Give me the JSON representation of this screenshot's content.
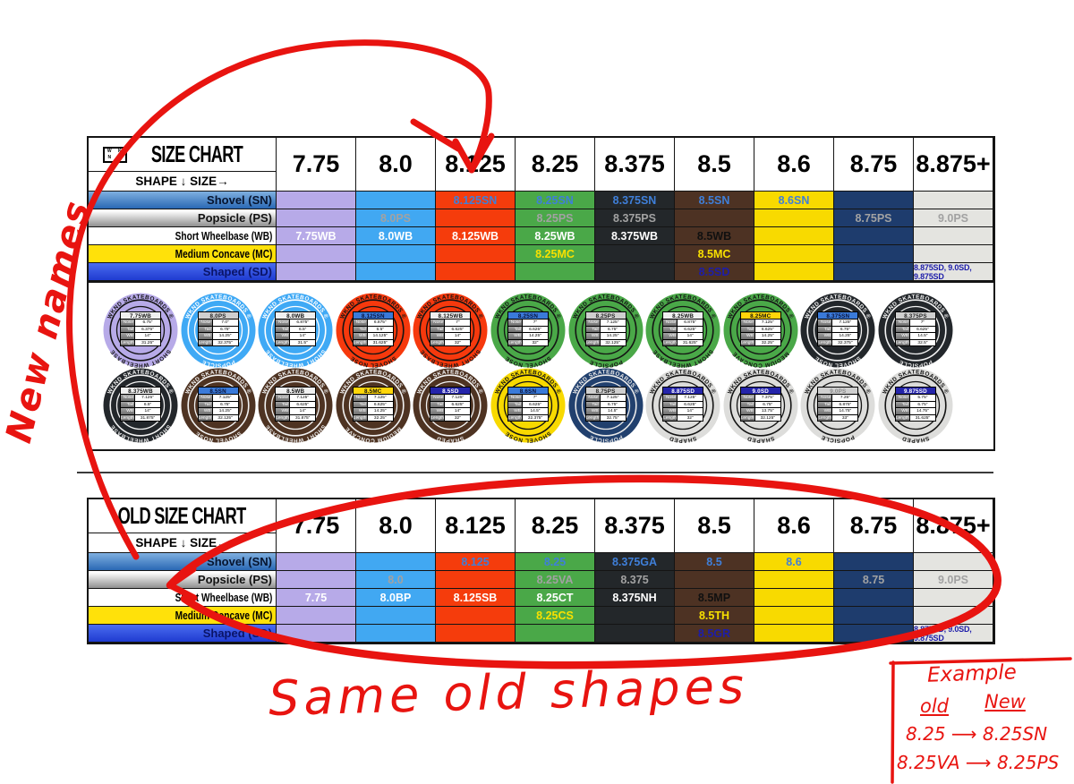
{
  "shared": {
    "subtitle": "SHAPE ↓ SIZE→",
    "logo_letters": [
      "W",
      "K",
      "N",
      "D"
    ],
    "sizes": [
      "7.75",
      "8.0",
      "8.125",
      "8.25",
      "8.375",
      "8.5",
      "8.6",
      "8.75",
      "8.875+"
    ],
    "column_colors": [
      "#b7aae8",
      "#41a8f2",
      "#f53c0c",
      "#4aa848",
      "#23272a",
      "#4d3223",
      "#f8da00",
      "#1e3c6d",
      "#e4e4e0"
    ],
    "column_x_style": [
      "dark",
      "dark",
      "dark",
      "dark",
      "light",
      "light",
      "dark",
      "light",
      "dark"
    ],
    "value_colors": {
      "SN": "#3f7fd9",
      "PS": "#a2a2a2",
      "WB": "#ffffff",
      "MC": "#f8e000",
      "SD": "#1d1daa"
    }
  },
  "new_chart": {
    "key": "new",
    "title": "SIZE CHART",
    "has_logo": true,
    "rows": [
      {
        "label": "Shovel (SN)",
        "code": "SN",
        "cells": [
          "",
          "",
          "8.125SN",
          "8.25SN",
          "8.375SN",
          "8.5SN",
          "8.6SN",
          "",
          ""
        ]
      },
      {
        "label": "Popsicle (PS)",
        "code": "PS",
        "cells": [
          "",
          "8.0PS",
          "",
          "8.25PS",
          "8.375PS",
          "",
          "",
          "8.75PS",
          "9.0PS"
        ]
      },
      {
        "label": "Short Wheelbase (WB)",
        "code": "WB",
        "cells": [
          "7.75WB",
          "8.0WB",
          "8.125WB",
          "8.25WB",
          "8.375WB",
          "8.5WB",
          "",
          "",
          ""
        ]
      },
      {
        "label": "Medium Concave (MC)",
        "code": "MC",
        "cells": [
          "",
          "",
          "",
          "8.25MC",
          "",
          "8.5MC",
          "",
          "",
          ""
        ]
      },
      {
        "label": "Shaped (SD)",
        "code": "SD",
        "cells": [
          "",
          "",
          "",
          "",
          "",
          "8.5SD",
          "",
          "",
          "8.875SD, 9.0SD, 9.875SD"
        ]
      }
    ]
  },
  "old_chart": {
    "key": "old",
    "title": "OLD SIZE CHART",
    "has_logo": false,
    "rows": [
      {
        "label": "Shovel (SN)",
        "code": "SN",
        "cells": [
          "",
          "",
          "8.125",
          "8.25",
          "8.375GA",
          "8.5",
          "8.6",
          "",
          ""
        ]
      },
      {
        "label": "Popsicle (PS)",
        "code": "PS",
        "cells": [
          "",
          "8.0",
          "",
          "8.25VA",
          "8.375",
          "",
          "",
          "8.75",
          "9.0PS"
        ]
      },
      {
        "label": "Short Wheelbase (WB)",
        "code": "WB",
        "cells": [
          "7.75",
          "8.0BP",
          "8.125SB",
          "8.25CT",
          "8.375NH",
          "8.5MP",
          "",
          "",
          ""
        ]
      },
      {
        "label": "Medium Concave (MC)",
        "code": "MC",
        "cells": [
          "",
          "",
          "",
          "8.25CS",
          "",
          "8.5TH",
          "",
          "",
          ""
        ]
      },
      {
        "label": "Shaped (SD)",
        "code": "SD",
        "cells": [
          "",
          "",
          "",
          "",
          "",
          "8.5GR",
          "",
          "",
          "8.875SD, 9.0SD, 9.875SD"
        ]
      }
    ]
  },
  "badges": {
    "brand_arc": "WKND SKATEBOARDS ®",
    "shape_names": {
      "WB": "SHORT WHEELBASE",
      "PS": "POPSICLE",
      "SN": "SHOVEL NOSE",
      "MC": "MEDIUM CONCAVE",
      "SD": "SHAPED"
    },
    "measure_labels": [
      "Nose",
      "Tail",
      "WB",
      "Length"
    ],
    "measure_keys": [
      "nose",
      "tail",
      "wb",
      "length"
    ],
    "row1": [
      {
        "id": "7.75WB",
        "shape": "WB",
        "bg": "#b7aae8",
        "fg": "#141414",
        "title_bg": "#f0f0f0",
        "title_fg": "#111111",
        "nose": "6.75\"",
        "tail": "6.375\"",
        "wb": "14\"",
        "length": "31.25\""
      },
      {
        "id": "8.0PS",
        "shape": "PS",
        "bg": "#3fa9f5",
        "fg": "#ffffff",
        "title_bg": "#cfcfcf",
        "title_fg": "#222222",
        "nose": "7.0\"",
        "tail": "6.75\"",
        "wb": "14.25\"",
        "length": "32.375\""
      },
      {
        "id": "8.0WB",
        "shape": "WB",
        "bg": "#3fa9f5",
        "fg": "#ffffff",
        "title_bg": "#f0f0f0",
        "title_fg": "#111111",
        "nose": "6.875\"",
        "tail": "6.5\"",
        "wb": "14\"",
        "length": "31.5\""
      },
      {
        "id": "8.125SN",
        "shape": "SN",
        "bg": "#f6390d",
        "fg": "#141414",
        "title_bg": "#3a7ad9",
        "title_fg": "#0a1238",
        "nose": "6.875\"",
        "tail": "6.5\"",
        "wb": "14.125\"",
        "length": "31.625\""
      },
      {
        "id": "8.125WB",
        "shape": "WB",
        "bg": "#f6390d",
        "fg": "#141414",
        "title_bg": "#f0f0f0",
        "title_fg": "#111111",
        "nose": "7\"",
        "tail": "6.625\"",
        "wb": "14\"",
        "length": "32\""
      },
      {
        "id": "8.25SN",
        "shape": "SN",
        "bg": "#4aa848",
        "fg": "#141414",
        "title_bg": "#3a7ad9",
        "title_fg": "#0a1238",
        "nose": "7\"",
        "tail": "6.625\"",
        "wb": "14.25\"",
        "length": "32\""
      },
      {
        "id": "8.25PS",
        "shape": "PS",
        "bg": "#4aa848",
        "fg": "#141414",
        "title_bg": "#cfcfcf",
        "title_fg": "#222222",
        "nose": "7.125\"",
        "tail": "6.75\"",
        "wb": "14.25\"",
        "length": "32.125\""
      },
      {
        "id": "8.25WB",
        "shape": "WB",
        "bg": "#4aa848",
        "fg": "#141414",
        "title_bg": "#f0f0f0",
        "title_fg": "#111111",
        "nose": "6.875\"",
        "tail": "6.625\"",
        "wb": "14\"",
        "length": "31.625\""
      },
      {
        "id": "8.25MC",
        "shape": "MC",
        "bg": "#4aa848",
        "fg": "#141414",
        "title_bg": "#ffd60a",
        "title_fg": "#111111",
        "nose": "7.125\"",
        "tail": "6.625\"",
        "wb": "14.25\"",
        "length": "32.25\""
      },
      {
        "id": "8.375SN",
        "shape": "SN",
        "bg": "#23272b",
        "fg": "#f2f2f2",
        "title_bg": "#3a7ad9",
        "title_fg": "#0a1238",
        "nose": "7.125\"",
        "tail": "6.75\"",
        "wb": "14.25\"",
        "length": "32.375\""
      },
      {
        "id": "8.375PS",
        "shape": "PS",
        "bg": "#23272b",
        "fg": "#f2f2f2",
        "title_bg": "#cfcfcf",
        "title_fg": "#222222",
        "nose": "7\"",
        "tail": "6.625\"",
        "wb": "14.5\"",
        "length": "32.5\""
      }
    ],
    "row2": [
      {
        "id": "8.375WB",
        "shape": "WB",
        "bg": "#23272b",
        "fg": "#f2f2f2",
        "title_bg": "#f0f0f0",
        "title_fg": "#111111",
        "nose": "7.125\"",
        "tail": "6.5\"",
        "wb": "14\"",
        "length": "31.875\""
      },
      {
        "id": "8.5SN",
        "shape": "SN",
        "bg": "#4e3322",
        "fg": "#f2f2f2",
        "title_bg": "#3a7ad9",
        "title_fg": "#0a1238",
        "nose": "7.125\"",
        "tail": "6.75\"",
        "wb": "14.25\"",
        "length": "32.125\""
      },
      {
        "id": "8.5WB",
        "shape": "WB",
        "bg": "#4e3322",
        "fg": "#f2f2f2",
        "title_bg": "#f0f0f0",
        "title_fg": "#111111",
        "nose": "7.125\"",
        "tail": "6.625\"",
        "wb": "14\"",
        "length": "31.875\""
      },
      {
        "id": "8.5MC",
        "shape": "MC",
        "bg": "#4e3322",
        "fg": "#f2f2f2",
        "title_bg": "#ffd60a",
        "title_fg": "#111111",
        "nose": "7.125\"",
        "tail": "6.625\"",
        "wb": "14.25\"",
        "length": "32.25\""
      },
      {
        "id": "8.5SD",
        "shape": "SD",
        "bg": "#4e3322",
        "fg": "#f2f2f2",
        "title_bg": "#2424aa",
        "title_fg": "#ffffff",
        "nose": "7.125\"",
        "tail": "6.625\"",
        "wb": "14\"",
        "length": "32\""
      },
      {
        "id": "8.6SN",
        "shape": "SN",
        "bg": "#f8d900",
        "fg": "#141414",
        "title_bg": "#3a7ad9",
        "title_fg": "#0a1238",
        "nose": "7\"",
        "tail": "6.625\"",
        "wb": "14.5\"",
        "length": "32.375\""
      },
      {
        "id": "8.75PS",
        "shape": "PS",
        "bg": "#21406e",
        "fg": "#e8e8e8",
        "title_bg": "#cfcfcf",
        "title_fg": "#222222",
        "nose": "7.125\"",
        "tail": "6.75\"",
        "wb": "14.5\"",
        "length": "32.75\""
      },
      {
        "id": "8.875SD",
        "shape": "SD",
        "bg": "#dddddb",
        "fg": "#141414",
        "title_bg": "#2424aa",
        "title_fg": "#ffffff",
        "nose": "7.125\"",
        "tail": "6.625\"",
        "wb": "14\"",
        "length": "32\""
      },
      {
        "id": "9.0SD",
        "shape": "SD",
        "bg": "#dddddb",
        "fg": "#141414",
        "title_bg": "#2424aa",
        "title_fg": "#ffffff",
        "nose": "7.375\"",
        "tail": "6.75\"",
        "wb": "13.75\"",
        "length": "32.125\""
      },
      {
        "id": "9.0PS",
        "shape": "PS",
        "bg": "#dddddb",
        "fg": "#141414",
        "title_bg": "#cfcfcf",
        "title_fg": "#8a8a8a",
        "nose": "7.25\"",
        "tail": "6.875\"",
        "wb": "14.75\"",
        "length": "33\""
      },
      {
        "id": "9.875SD",
        "shape": "SD",
        "bg": "#dddddb",
        "fg": "#141414",
        "title_bg": "#2424aa",
        "title_fg": "#ffffff",
        "nose": "5.75\"",
        "tail": "6.75\"",
        "wb": "14.75\"",
        "length": "31.625\""
      }
    ]
  },
  "annotations": {
    "accent_color": "#e81410",
    "new_names": "New names",
    "same_old_shapes": "Same old shapes",
    "example": {
      "title": "Example",
      "old_label": "old",
      "new_label": "New",
      "arrow": "⟶",
      "rows": [
        {
          "old": "8.25",
          "new": "8.25SN"
        },
        {
          "old": "8.25VA",
          "new": "8.25PS"
        }
      ]
    }
  }
}
